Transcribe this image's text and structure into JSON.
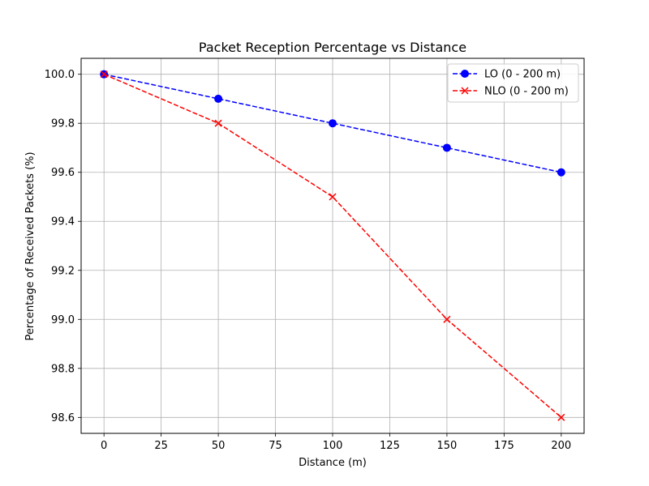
{
  "chart_data": {
    "type": "line",
    "title": "Packet Reception Percentage vs Distance",
    "xlabel": "Distance (m)",
    "ylabel": "Percentage of Received Packets (%)",
    "xlim": [
      -10,
      210
    ],
    "ylim": [
      98.535,
      100.065
    ],
    "xticks": [
      0,
      25,
      50,
      75,
      100,
      125,
      150,
      175,
      200
    ],
    "xtick_labels": [
      "0",
      "25",
      "50",
      "75",
      "100",
      "125",
      "150",
      "175",
      "200"
    ],
    "yticks": [
      98.6,
      98.8,
      99.0,
      99.2,
      99.4,
      99.6,
      99.8,
      100.0
    ],
    "ytick_labels": [
      "98.6",
      "98.8",
      "99.0",
      "99.2",
      "99.4",
      "99.6",
      "99.8",
      "100.0"
    ],
    "grid": true,
    "legend_position": "top-right",
    "x": [
      0,
      50,
      100,
      150,
      200
    ],
    "series": [
      {
        "name": "LO (0 - 200 m)",
        "values": [
          100.0,
          99.9,
          99.8,
          99.7,
          99.6
        ],
        "color": "#0000ff",
        "marker": "circle",
        "linestyle": "dashed"
      },
      {
        "name": "NLO (0 - 200 m)",
        "values": [
          100.0,
          99.8,
          99.5,
          99.0,
          98.6
        ],
        "color": "#ff0000",
        "marker": "x",
        "linestyle": "dashed"
      }
    ]
  }
}
